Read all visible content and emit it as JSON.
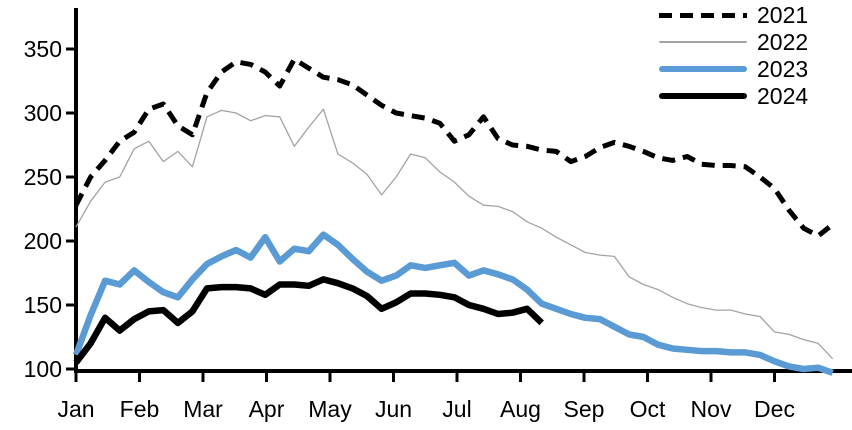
{
  "chart_data": {
    "type": "line",
    "title": "",
    "xlabel": "",
    "ylabel": "",
    "grid": false,
    "legend_position": "top-right",
    "x_axis": {
      "tick_labels": [
        "Jan",
        "Feb",
        "Mar",
        "Apr",
        "May",
        "Jun",
        "Jul",
        "Aug",
        "Sep",
        "Oct",
        "Nov",
        "Dec"
      ],
      "points_per_month": 4.3636,
      "point_unit": "week"
    },
    "y_axis": {
      "min": 100,
      "max": 350,
      "tick_step": 50,
      "tick_labels": [
        "100",
        "150",
        "200",
        "250",
        "300",
        "350"
      ]
    },
    "series": [
      {
        "name": "2021",
        "color": "#000000",
        "style": "dashed",
        "width": 5,
        "dash": "13 8",
        "values": [
          228,
          250,
          263,
          278,
          285,
          303,
          307,
          290,
          283,
          316,
          332,
          340,
          338,
          332,
          321,
          342,
          335,
          328,
          326,
          322,
          314,
          306,
          300,
          298,
          296,
          292,
          278,
          283,
          297,
          280,
          275,
          274,
          271,
          270,
          262,
          266,
          273,
          277,
          274,
          270,
          265,
          263,
          266,
          260,
          259,
          259,
          258,
          250,
          241,
          224,
          210,
          204,
          213
        ]
      },
      {
        "name": "2022",
        "color": "#a3a3a3",
        "style": "solid-thin",
        "width": 1.3,
        "dash": "",
        "values": [
          211,
          231,
          246,
          250,
          272,
          278,
          262,
          270,
          258,
          297,
          302,
          300,
          294,
          298,
          297,
          274,
          289,
          303,
          268,
          261,
          252,
          236,
          250,
          268,
          265,
          254,
          246,
          235,
          228,
          227,
          223,
          215,
          210,
          203,
          197,
          191,
          189,
          188,
          172,
          166,
          162,
          156,
          151,
          148,
          146,
          146,
          143,
          141,
          129,
          127,
          123,
          120,
          108
        ]
      },
      {
        "name": "2023",
        "color": "#5b9bd5",
        "style": "solid-thick",
        "width": 6.5,
        "dash": "",
        "values": [
          111,
          142,
          169,
          166,
          177,
          168,
          160,
          156,
          170,
          182,
          188,
          193,
          187,
          203,
          184,
          194,
          192,
          205,
          197,
          186,
          176,
          169,
          173,
          181,
          179,
          181,
          183,
          173,
          177,
          174,
          170,
          162,
          151,
          147,
          143,
          140,
          139,
          133,
          127,
          125,
          119,
          116,
          115,
          114,
          114,
          113,
          113,
          111,
          106,
          102,
          100,
          101,
          97
        ]
      },
      {
        "name": "2024",
        "color": "#000000",
        "style": "solid-thick",
        "width": 6.5,
        "dash": "",
        "values": [
          105,
          120,
          140,
          130,
          139,
          145,
          146,
          136,
          145,
          163,
          164,
          164,
          163,
          158,
          166,
          166,
          165,
          170,
          167,
          163,
          157,
          147,
          152,
          159,
          159,
          158,
          156,
          150,
          147,
          143,
          144,
          147,
          136
        ]
      }
    ]
  },
  "legend": {
    "items": [
      {
        "label": "2021"
      },
      {
        "label": "2022"
      },
      {
        "label": "2023"
      },
      {
        "label": "2024"
      }
    ]
  }
}
